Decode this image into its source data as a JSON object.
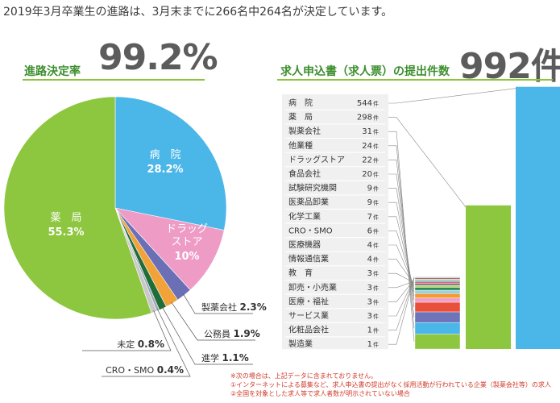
{
  "headline": "2019年3月卒業生の進路は、3月末までに266名中264名が決定しています。",
  "left_panel": {
    "label": "進路決定率",
    "value": "99.2%"
  },
  "right_panel": {
    "label": "求人申込書（求人票）の提出件数",
    "value": "992件"
  },
  "colors": {
    "green": "#8dc63f",
    "blue": "#4bb6e8",
    "pink": "#ee9cc6",
    "purple": "#6b6fb5",
    "orange": "#f1a238",
    "darkgreen": "#1f6e3a",
    "gray": "#c8c8c8",
    "slate": "#9aa7b3",
    "red": "#e8503a",
    "note": "#d23a2a",
    "label_green": "#3c8e2e"
  },
  "chart_data": [
    {
      "type": "pie",
      "title": "進路決定率",
      "slices": [
        {
          "name": "病院",
          "value": 28.2,
          "label": "28.2%"
        },
        {
          "name": "ドラッグストア",
          "value": 10,
          "label": "10%"
        },
        {
          "name": "製薬会社",
          "value": 2.3,
          "label": "2.3%"
        },
        {
          "name": "公務員",
          "value": 1.9,
          "label": "1.9%"
        },
        {
          "name": "進学",
          "value": 1.1,
          "label": "1.1%"
        },
        {
          "name": "CRO・SMO",
          "value": 0.4,
          "label": "0.4%"
        },
        {
          "name": "未定",
          "value": 0.8,
          "label": "0.8%"
        },
        {
          "name": "薬局",
          "value": 55.3,
          "label": "55.3%"
        }
      ],
      "inside_labels": [
        {
          "name": "病　院",
          "label": "28.2%"
        },
        {
          "name_lines": [
            "ドラッグ",
            "ストア"
          ],
          "label": "10%"
        },
        {
          "name": "薬　局",
          "label": "55.3%"
        }
      ],
      "callouts": [
        {
          "name": "製薬会社",
          "label": "2.3%"
        },
        {
          "name": "公務員",
          "label": "1.9%"
        },
        {
          "name": "進学",
          "label": "1.1%"
        },
        {
          "name": "CRO・SMO",
          "label": "0.4%"
        },
        {
          "name": "未定",
          "label": "0.8%"
        }
      ]
    },
    {
      "type": "bar",
      "title": "求人申込書（求人票）の提出件数",
      "total": 992,
      "unit": "件",
      "categories": [
        "病　院",
        "薬　局",
        "製薬会社",
        "他業種",
        "ドラッグストア",
        "食品会社",
        "試験研究機関",
        "医薬品卸業",
        "化学工業",
        "CRO・SMO",
        "医療機器",
        "情報通信業",
        "教　育",
        "卸売・小売業",
        "医療・福祉",
        "サービス業",
        "化粧品会社",
        "製造業"
      ],
      "values": [
        544,
        298,
        31,
        24,
        22,
        20,
        9,
        9,
        7,
        6,
        4,
        4,
        3,
        3,
        3,
        3,
        1,
        1
      ]
    }
  ],
  "notes": [
    "※次の場合は、上記データに含まれておりません。",
    "①インターネットによる募集など、求人申込書の提出がなく採用活動が行われている企業（製薬会社等）の求人",
    "②全国を対象とした求人等で求人者数が明示されていない場合"
  ]
}
